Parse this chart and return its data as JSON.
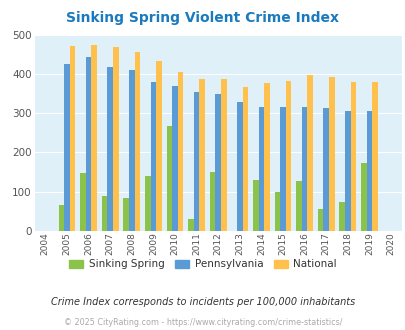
{
  "title": "Sinking Spring Violent Crime Index",
  "title_color": "#1a7abf",
  "years": [
    2004,
    2005,
    2006,
    2007,
    2008,
    2009,
    2010,
    2011,
    2012,
    2013,
    2014,
    2015,
    2016,
    2017,
    2018,
    2019,
    2020
  ],
  "sinking_spring": [
    0,
    65,
    148,
    88,
    85,
    140,
    268,
    30,
    150,
    0,
    130,
    100,
    128,
    55,
    75,
    172,
    0
  ],
  "pennsylvania": [
    0,
    425,
    442,
    418,
    410,
    380,
    368,
    355,
    350,
    328,
    315,
    315,
    315,
    312,
    305,
    305,
    0
  ],
  "national": [
    0,
    470,
    473,
    468,
    455,
    433,
    405,
    388,
    388,
    367,
    377,
    383,
    397,
    393,
    380,
    380,
    0
  ],
  "color_sinking": "#8bc34a",
  "color_pennsylvania": "#5b9bd5",
  "color_national": "#ffc04c",
  "xlim_min": 2003.5,
  "xlim_max": 2020.5,
  "ylim": [
    0,
    500
  ],
  "yticks": [
    0,
    100,
    200,
    300,
    400,
    500
  ],
  "bg_color": "#dff0f8",
  "grid_color": "#ffffff",
  "footnote": "Crime Index corresponds to incidents per 100,000 inhabitants",
  "copyright": "© 2025 CityRating.com - https://www.cityrating.com/crime-statistics/",
  "bar_width": 0.26
}
